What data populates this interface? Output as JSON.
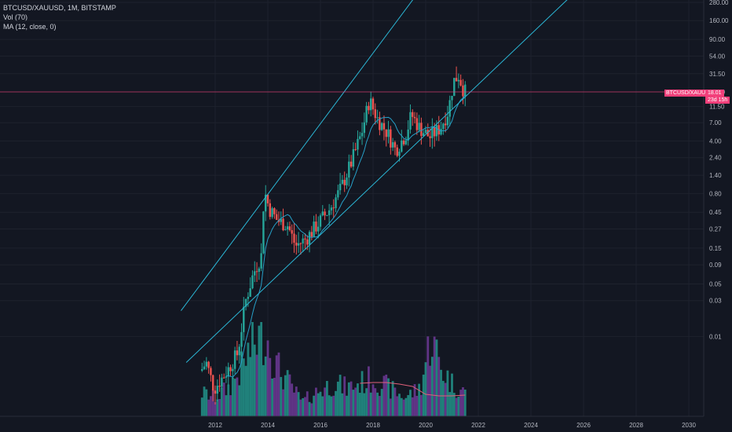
{
  "legend": {
    "symbol": "BTCUSD/XAUUSD, 1M, BITSTAMP",
    "volume": "Vol (70)",
    "ma": "MA (12, close, 0)"
  },
  "price_tag": {
    "symbol": "BTCUSD/XAUUSD",
    "value": "18.01",
    "countdown": "23d 15h"
  },
  "colors": {
    "background": "#131722",
    "up": "#26a69a",
    "down": "#ef5350",
    "volume_up": "#26a69a",
    "volume_down": "#7b3fa8",
    "ma": "#26a0c8",
    "channel": "#2bb7d6",
    "vol_ma": "#e0607a",
    "price_line": "#f23f7a"
  },
  "chart_data": {
    "type": "candlestick",
    "y_scale": "log",
    "y_ticks": [
      "280.00",
      "160.00",
      "90.00",
      "54.00",
      "31.50",
      "18.00",
      "11.50",
      "7.00",
      "4.00",
      "2.40",
      "1.40",
      "0.80",
      "0.45",
      "0.27",
      "0.15",
      "0.09",
      "0.05",
      "0.03",
      "0.01"
    ],
    "x_ticks": [
      "2012",
      "2014",
      "2016",
      "2018",
      "2020",
      "2022",
      "2024",
      "2026",
      "2028",
      "2030"
    ],
    "x_range": [
      2011.3,
      2030.9
    ],
    "last_price": 18.01,
    "channel_lines": [
      {
        "name": "",
        "points": [
          [
            2010.7,
            0.022
          ],
          [
            2016.9,
            18.0
          ]
        ]
      },
      {
        "name": "",
        "points": [
          [
            2010.9,
            0.0045
          ],
          [
            2021.7,
            18.0
          ]
        ]
      }
    ],
    "price_anchors": [
      [
        2011.5,
        0.0035
      ],
      [
        2011.7,
        0.0045
      ],
      [
        2012.0,
        0.002
      ],
      [
        2012.5,
        0.0035
      ],
      [
        2012.9,
        0.006
      ],
      [
        2013.2,
        0.03
      ],
      [
        2013.5,
        0.07
      ],
      [
        2013.8,
        0.12
      ],
      [
        2013.9,
        0.9
      ],
      [
        2014.1,
        0.5
      ],
      [
        2014.4,
        0.35
      ],
      [
        2014.8,
        0.3
      ],
      [
        2015.1,
        0.16
      ],
      [
        2015.5,
        0.2
      ],
      [
        2015.9,
        0.3
      ],
      [
        2016.4,
        0.5
      ],
      [
        2016.8,
        0.9
      ],
      [
        2017.2,
        2.0
      ],
      [
        2017.6,
        5.0
      ],
      [
        2017.9,
        14.0
      ],
      [
        2018.2,
        8.0
      ],
      [
        2018.6,
        5.0
      ],
      [
        2018.9,
        3.0
      ],
      [
        2019.3,
        5.0
      ],
      [
        2019.5,
        9.0
      ],
      [
        2019.8,
        6.0
      ],
      [
        2020.2,
        4.5
      ],
      [
        2020.6,
        6.0
      ],
      [
        2020.9,
        10.0
      ],
      [
        2021.1,
        25.0
      ],
      [
        2021.3,
        30.0
      ],
      [
        2021.5,
        18.0
      ]
    ],
    "volume_anchors": [
      [
        2011.5,
        0.25
      ],
      [
        2012.0,
        0.2
      ],
      [
        2012.5,
        0.3
      ],
      [
        2013.0,
        0.5
      ],
      [
        2013.4,
        0.75
      ],
      [
        2013.9,
        0.9
      ],
      [
        2014.3,
        0.55
      ],
      [
        2014.8,
        0.35
      ],
      [
        2015.3,
        0.15
      ],
      [
        2015.8,
        0.25
      ],
      [
        2016.5,
        0.35
      ],
      [
        2017.0,
        0.3
      ],
      [
        2017.5,
        0.35
      ],
      [
        2018.0,
        0.4
      ],
      [
        2018.6,
        0.3
      ],
      [
        2019.2,
        0.2
      ],
      [
        2019.8,
        0.3
      ],
      [
        2020.2,
        0.85
      ],
      [
        2020.6,
        0.5
      ],
      [
        2021.0,
        0.35
      ],
      [
        2021.5,
        0.25
      ]
    ]
  }
}
